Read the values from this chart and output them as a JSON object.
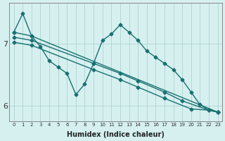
{
  "xlabel": "Humidex (Indice chaleur)",
  "bg_color": "#d6f0f0",
  "line_color": "#1a7070",
  "markersize": 2.5,
  "linewidth": 1.0,
  "xlim": [
    -0.5,
    23.5
  ],
  "ylim": [
    5.75,
    7.65
  ],
  "yticks": [
    6,
    7
  ],
  "xticks": [
    0,
    1,
    2,
    3,
    4,
    5,
    6,
    7,
    8,
    9,
    10,
    11,
    12,
    13,
    14,
    15,
    16,
    17,
    18,
    19,
    20,
    21,
    22,
    23
  ],
  "line1": {
    "x": [
      0,
      1,
      2,
      3,
      4,
      5,
      6,
      7,
      8,
      9,
      10,
      11,
      12,
      13,
      14,
      15,
      16,
      17,
      18,
      19,
      20,
      21,
      22,
      23
    ],
    "y": [
      7.18,
      7.48,
      7.12,
      6.95,
      6.72,
      6.62,
      6.52,
      6.18,
      6.35,
      6.68,
      7.05,
      7.15,
      7.3,
      7.18,
      7.05,
      6.88,
      6.78,
      6.68,
      6.58,
      6.42,
      6.22,
      6.02,
      5.93,
      5.9
    ]
  },
  "line2": {
    "x": [
      0,
      2,
      23
    ],
    "y": [
      7.18,
      7.12,
      5.9
    ]
  },
  "line3": {
    "x": [
      0,
      2,
      9,
      12,
      14,
      17,
      19,
      22,
      23
    ],
    "y": [
      7.1,
      7.05,
      6.68,
      6.52,
      6.4,
      6.22,
      6.08,
      5.93,
      5.9
    ]
  },
  "line4": {
    "x": [
      0,
      2,
      9,
      12,
      14,
      17,
      20,
      22,
      23
    ],
    "y": [
      7.02,
      6.97,
      6.58,
      6.42,
      6.3,
      6.12,
      5.95,
      5.93,
      5.9
    ]
  }
}
